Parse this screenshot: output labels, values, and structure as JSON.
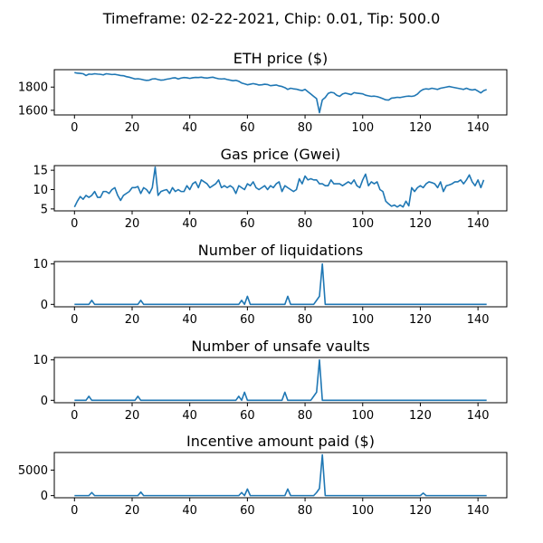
{
  "figure": {
    "suptitle": "Timeframe: 02-22-2021, Chip: 0.01, Tip: 500.0"
  },
  "chart_data": [
    {
      "type": "line",
      "title": "ETH price ($)",
      "xlabel": "",
      "ylabel": "",
      "xlim": [
        -7,
        150
      ],
      "ylim": [
        1560,
        1950
      ],
      "xticks": [
        0,
        20,
        40,
        60,
        80,
        100,
        120,
        140
      ],
      "yticks": [
        1600,
        1800
      ],
      "color": "#1f77b4",
      "x_start": 0,
      "values": [
        1925,
        1920,
        1918,
        1915,
        1900,
        1912,
        1910,
        1915,
        1912,
        1910,
        1905,
        1915,
        1912,
        1908,
        1910,
        1905,
        1900,
        1898,
        1890,
        1885,
        1878,
        1870,
        1872,
        1868,
        1862,
        1858,
        1860,
        1870,
        1872,
        1865,
        1860,
        1862,
        1868,
        1872,
        1878,
        1880,
        1870,
        1878,
        1882,
        1880,
        1875,
        1880,
        1883,
        1882,
        1885,
        1880,
        1878,
        1882,
        1885,
        1878,
        1872,
        1870,
        1872,
        1865,
        1860,
        1855,
        1858,
        1850,
        1835,
        1828,
        1820,
        1825,
        1830,
        1825,
        1818,
        1820,
        1825,
        1822,
        1812,
        1815,
        1818,
        1810,
        1805,
        1795,
        1780,
        1790,
        1785,
        1782,
        1775,
        1770,
        1780,
        1760,
        1740,
        1720,
        1700,
        1580,
        1690,
        1710,
        1745,
        1755,
        1750,
        1730,
        1720,
        1740,
        1748,
        1742,
        1735,
        1752,
        1748,
        1745,
        1742,
        1730,
        1725,
        1720,
        1722,
        1718,
        1710,
        1700,
        1690,
        1688,
        1705,
        1708,
        1712,
        1710,
        1715,
        1720,
        1722,
        1720,
        1725,
        1740,
        1765,
        1780,
        1785,
        1782,
        1790,
        1785,
        1780,
        1790,
        1795,
        1800,
        1805,
        1800,
        1795,
        1790,
        1785,
        1780,
        1790,
        1780,
        1775,
        1780,
        1765,
        1750,
        1770,
        1778
      ]
    },
    {
      "type": "line",
      "title": "Gas price (Gwei)",
      "xlabel": "",
      "ylabel": "",
      "xlim": [
        -7,
        150
      ],
      "ylim": [
        4.5,
        16.2
      ],
      "xticks": [
        0,
        20,
        40,
        60,
        80,
        100,
        120,
        140
      ],
      "yticks": [
        5,
        10,
        15
      ],
      "color": "#1f77b4",
      "x_start": 0,
      "values": [
        5.5,
        7,
        8.2,
        7.5,
        8.5,
        8,
        8.5,
        9.5,
        8,
        8,
        9.5,
        9.5,
        9,
        10,
        10.5,
        8.5,
        7.2,
        8.5,
        9,
        9.5,
        10.5,
        10.5,
        10.8,
        9,
        10.5,
        10,
        9,
        10.5,
        15.8,
        8.5,
        9.5,
        9.8,
        10,
        9,
        10.5,
        9.5,
        10,
        9.5,
        9.5,
        11,
        10,
        11.5,
        12,
        10.5,
        12.5,
        12,
        11.5,
        10.5,
        11,
        11.5,
        12.5,
        10.5,
        11,
        10.5,
        11,
        10.5,
        9,
        11,
        10.5,
        10,
        11.5,
        11,
        12,
        10.5,
        10,
        10.5,
        11,
        10,
        11,
        10.5,
        11.5,
        12,
        9.5,
        11,
        10.5,
        10,
        9.5,
        10,
        12.8,
        11.5,
        13.5,
        12.5,
        12.8,
        12.5,
        12.5,
        11.5,
        11.5,
        11,
        11,
        12.5,
        11.5,
        11.5,
        11.5,
        11,
        11.5,
        12,
        11.5,
        12.5,
        11,
        10.5,
        12.5,
        14,
        11,
        12,
        11.5,
        12,
        10,
        9.5,
        7,
        6.3,
        5.7,
        6,
        5.5,
        6,
        5.5,
        7,
        5.8,
        10.5,
        9.5,
        10.5,
        11,
        10.5,
        11.5,
        12,
        11.8,
        11.5,
        10.5,
        12,
        9.5,
        11,
        11.2,
        11.5,
        12,
        12,
        12.5,
        11.5,
        12.5,
        13.8,
        12,
        11,
        12.5,
        10.5,
        12.5
      ]
    },
    {
      "type": "line",
      "title": "Number of liquidations",
      "xlabel": "",
      "ylabel": "",
      "xlim": [
        -7,
        150
      ],
      "ylim": [
        -0.6,
        10.6
      ],
      "xticks": [
        0,
        20,
        40,
        60,
        80,
        100,
        120,
        140
      ],
      "yticks": [
        0,
        10
      ],
      "color": "#1f77b4",
      "x_start": 0,
      "values": [
        0,
        0,
        0,
        0,
        0,
        0,
        1,
        0,
        0,
        0,
        0,
        0,
        0,
        0,
        0,
        0,
        0,
        0,
        0,
        0,
        0,
        0,
        0,
        1,
        0,
        0,
        0,
        0,
        0,
        0,
        0,
        0,
        0,
        0,
        0,
        0,
        0,
        0,
        0,
        0,
        0,
        0,
        0,
        0,
        0,
        0,
        0,
        0,
        0,
        0,
        0,
        0,
        0,
        0,
        0,
        0,
        0,
        0,
        1,
        0,
        2,
        0,
        0,
        0,
        0,
        0,
        0,
        0,
        0,
        0,
        0,
        0,
        0,
        0,
        2,
        0,
        0,
        0,
        0,
        0,
        0,
        0,
        0,
        0,
        1,
        2,
        10,
        0,
        0,
        0,
        0,
        0,
        0,
        0,
        0,
        0,
        0,
        0,
        0,
        0,
        0,
        0,
        0,
        0,
        0,
        0,
        0,
        0,
        0,
        0,
        0,
        0,
        0,
        0,
        0,
        0,
        0,
        0,
        0,
        0,
        0,
        0,
        0,
        0,
        0,
        0,
        0,
        0,
        0,
        0,
        0,
        0,
        0,
        0,
        0,
        0,
        0,
        0,
        0,
        0,
        0,
        0,
        0,
        0
      ]
    },
    {
      "type": "line",
      "title": "Number of unsafe vaults",
      "xlabel": "",
      "ylabel": "",
      "xlim": [
        -7,
        150
      ],
      "ylim": [
        -0.6,
        10.6
      ],
      "xticks": [
        0,
        20,
        40,
        60,
        80,
        100,
        120,
        140
      ],
      "yticks": [
        0,
        10
      ],
      "color": "#1f77b4",
      "x_start": 0,
      "values": [
        0,
        0,
        0,
        0,
        0,
        1,
        0,
        0,
        0,
        0,
        0,
        0,
        0,
        0,
        0,
        0,
        0,
        0,
        0,
        0,
        0,
        0,
        1,
        0,
        0,
        0,
        0,
        0,
        0,
        0,
        0,
        0,
        0,
        0,
        0,
        0,
        0,
        0,
        0,
        0,
        0,
        0,
        0,
        0,
        0,
        0,
        0,
        0,
        0,
        0,
        0,
        0,
        0,
        0,
        0,
        0,
        0,
        1,
        0,
        2,
        0,
        0,
        0,
        0,
        0,
        0,
        0,
        0,
        0,
        0,
        0,
        0,
        0,
        2,
        0,
        0,
        0,
        0,
        0,
        0,
        0,
        0,
        0,
        1,
        2,
        10,
        0,
        0,
        0,
        0,
        0,
        0,
        0,
        0,
        0,
        0,
        0,
        0,
        0,
        0,
        0,
        0,
        0,
        0,
        0,
        0,
        0,
        0,
        0,
        0,
        0,
        0,
        0,
        0,
        0,
        0,
        0,
        0,
        0,
        0,
        0,
        0,
        0,
        0,
        0,
        0,
        0,
        0,
        0,
        0,
        0,
        0,
        0,
        0,
        0,
        0,
        0,
        0,
        0,
        0,
        0,
        0,
        0,
        0
      ]
    },
    {
      "type": "line",
      "title": "Incentive amount paid ($)",
      "xlabel": "",
      "ylabel": "",
      "xlim": [
        -7,
        150
      ],
      "ylim": [
        -420,
        8450
      ],
      "xticks": [
        0,
        20,
        40,
        60,
        80,
        100,
        120,
        140
      ],
      "yticks": [
        0,
        5000
      ],
      "color": "#1f77b4",
      "x_start": 0,
      "values": [
        0,
        0,
        0,
        0,
        0,
        0,
        600,
        0,
        0,
        0,
        0,
        0,
        0,
        0,
        0,
        0,
        0,
        0,
        0,
        0,
        0,
        0,
        0,
        700,
        0,
        0,
        0,
        0,
        0,
        0,
        0,
        0,
        0,
        0,
        0,
        0,
        0,
        0,
        0,
        0,
        0,
        0,
        0,
        0,
        0,
        0,
        0,
        0,
        0,
        0,
        0,
        0,
        0,
        0,
        0,
        0,
        0,
        0,
        600,
        0,
        1300,
        0,
        0,
        0,
        0,
        0,
        0,
        0,
        0,
        0,
        0,
        0,
        0,
        0,
        1300,
        0,
        0,
        0,
        0,
        0,
        0,
        0,
        0,
        0,
        600,
        1400,
        8000,
        0,
        0,
        0,
        0,
        0,
        0,
        0,
        0,
        0,
        0,
        0,
        0,
        0,
        0,
        0,
        0,
        0,
        0,
        0,
        0,
        0,
        0,
        0,
        0,
        0,
        0,
        0,
        0,
        0,
        0,
        0,
        0,
        0,
        0,
        500,
        0,
        0,
        0,
        0,
        0,
        0,
        0,
        0,
        0,
        0,
        0,
        0,
        0,
        0,
        0,
        0,
        0,
        0,
        0,
        0,
        0,
        0
      ]
    }
  ]
}
